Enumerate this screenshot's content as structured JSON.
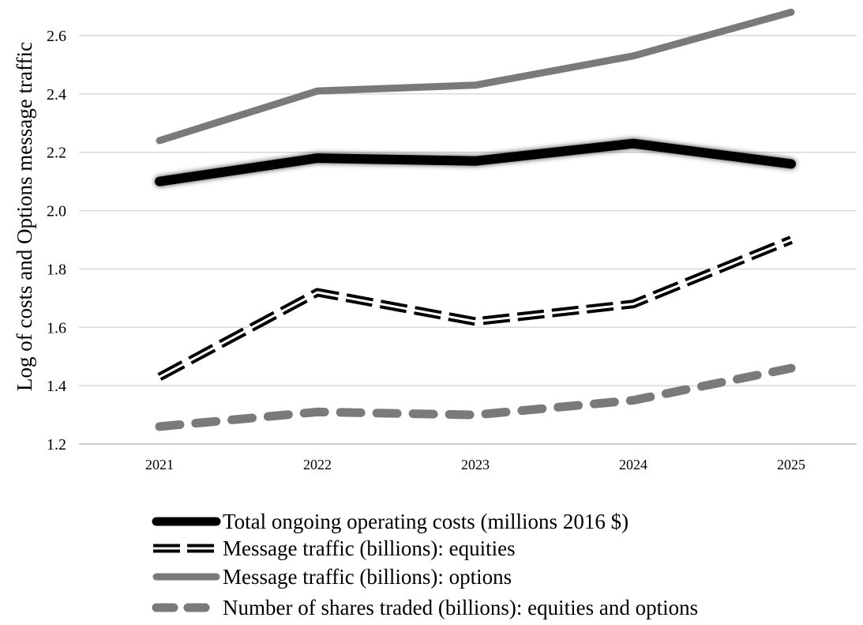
{
  "chart_data": {
    "type": "line",
    "ylabel": "Log of costs and Options message traffic",
    "xlabel": "",
    "categories": [
      "2021",
      "2022",
      "2023",
      "2024",
      "2025"
    ],
    "ylim": [
      1.2,
      2.7
    ],
    "yticks": [
      1.2,
      1.4,
      1.6,
      1.8,
      2.0,
      2.2,
      2.4,
      2.6
    ],
    "ytick_labels": [
      "1.2",
      "1.4",
      "1.6",
      "1.8",
      "2.0",
      "2.2",
      "2.4",
      "2.6"
    ],
    "grid": "horizontal",
    "legend_position": "bottom",
    "series": [
      {
        "name": "Total ongoing operating costs (millions 2016 $)",
        "style": "thick-solid-shadow",
        "color": "#000000",
        "values": [
          2.1,
          2.18,
          2.17,
          2.23,
          2.16
        ]
      },
      {
        "name": "Message traffic (billions): equities",
        "style": "double-dashed",
        "color": "#000000",
        "values": [
          1.43,
          1.72,
          1.62,
          1.68,
          1.9
        ]
      },
      {
        "name": "Message traffic (billions): options",
        "style": "solid",
        "color": "#7a7a7a",
        "values": [
          2.24,
          2.41,
          2.43,
          2.53,
          2.68
        ]
      },
      {
        "name": "Number of shares traded (billions): equities and options",
        "style": "dashed",
        "color": "#7a7a7a",
        "values": [
          1.26,
          1.31,
          1.3,
          1.35,
          1.46
        ]
      }
    ]
  }
}
